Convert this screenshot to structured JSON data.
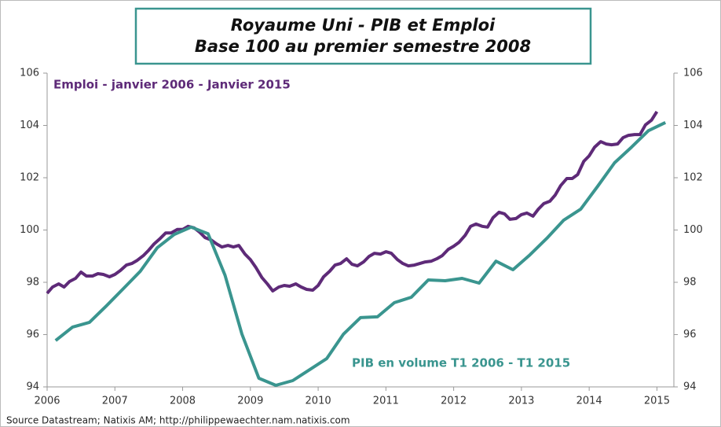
{
  "chart_data": {
    "type": "line",
    "title": "Royaume Uni - PIB et Emploi",
    "subtitle": "Base 100 au premier semestre 2008",
    "source": "Source Datastream; Natixis AM; http://philippewaechter.nam.natixis.com",
    "xlim": [
      2006,
      2015.25
    ],
    "xticks": [
      2006,
      2007,
      2008,
      2009,
      2010,
      2011,
      2012,
      2013,
      2014,
      2015
    ],
    "ylim": [
      94,
      106
    ],
    "yticks": [
      94,
      96,
      98,
      100,
      102,
      104,
      106
    ],
    "y2lim": [
      94,
      106
    ],
    "y2ticks": [
      94,
      96,
      98,
      100,
      102,
      104,
      106
    ],
    "grid": false,
    "series": [
      {
        "name": "Emploi - janvier 2006 - Janvier 2015",
        "color": "#5e2a78",
        "x": [
          2006.0,
          2006.08,
          2006.17,
          2006.25,
          2006.33,
          2006.42,
          2006.5,
          2006.58,
          2006.67,
          2006.75,
          2006.83,
          2006.92,
          2007.0,
          2007.08,
          2007.17,
          2007.25,
          2007.33,
          2007.42,
          2007.5,
          2007.58,
          2007.67,
          2007.75,
          2007.83,
          2007.92,
          2008.0,
          2008.08,
          2008.17,
          2008.25,
          2008.33,
          2008.42,
          2008.5,
          2008.58,
          2008.67,
          2008.75,
          2008.83,
          2008.92,
          2009.0,
          2009.08,
          2009.17,
          2009.25,
          2009.33,
          2009.42,
          2009.5,
          2009.58,
          2009.67,
          2009.75,
          2009.83,
          2009.92,
          2010.0,
          2010.08,
          2010.17,
          2010.25,
          2010.33,
          2010.42,
          2010.5,
          2010.58,
          2010.67,
          2010.75,
          2010.83,
          2010.92,
          2011.0,
          2011.08,
          2011.17,
          2011.25,
          2011.33,
          2011.42,
          2011.5,
          2011.58,
          2011.67,
          2011.75,
          2011.83,
          2011.92,
          2012.0,
          2012.08,
          2012.17,
          2012.25,
          2012.33,
          2012.42,
          2012.5,
          2012.58,
          2012.67,
          2012.75,
          2012.83,
          2012.92,
          2013.0,
          2013.08,
          2013.17,
          2013.25,
          2013.33,
          2013.42,
          2013.5,
          2013.58,
          2013.67,
          2013.75,
          2013.83,
          2013.92,
          2014.0,
          2014.08,
          2014.17,
          2014.25,
          2014.33,
          2014.42,
          2014.5,
          2014.58,
          2014.67,
          2014.75,
          2014.83,
          2014.92,
          2015.0
        ],
        "values": [
          97.58,
          97.82,
          97.94,
          97.82,
          98.03,
          98.15,
          98.39,
          98.24,
          98.24,
          98.33,
          98.3,
          98.21,
          98.3,
          98.45,
          98.66,
          98.72,
          98.84,
          99.02,
          99.23,
          99.47,
          99.68,
          99.89,
          99.89,
          100.02,
          100.02,
          100.14,
          100.08,
          99.92,
          99.71,
          99.62,
          99.47,
          99.35,
          99.41,
          99.35,
          99.41,
          99.08,
          98.87,
          98.57,
          98.18,
          97.94,
          97.67,
          97.82,
          97.88,
          97.85,
          97.94,
          97.82,
          97.73,
          97.7,
          97.88,
          98.21,
          98.42,
          98.66,
          98.72,
          98.9,
          98.69,
          98.63,
          98.78,
          98.99,
          99.11,
          99.08,
          99.17,
          99.11,
          98.87,
          98.72,
          98.63,
          98.66,
          98.72,
          98.78,
          98.81,
          98.9,
          99.02,
          99.26,
          99.38,
          99.53,
          99.8,
          100.14,
          100.23,
          100.14,
          100.11,
          100.47,
          100.68,
          100.62,
          100.41,
          100.44,
          100.59,
          100.65,
          100.53,
          100.8,
          101.01,
          101.1,
          101.34,
          101.7,
          101.97,
          101.97,
          102.12,
          102.63,
          102.84,
          103.17,
          103.38,
          103.29,
          103.26,
          103.29,
          103.53,
          103.62,
          103.65,
          103.65,
          104.02,
          104.2,
          104.53
        ]
      },
      {
        "name": "PIB en volume T1 2006 - T1 2015",
        "color": "#3a958f",
        "x": [
          2006.125,
          2006.375,
          2006.625,
          2006.875,
          2007.125,
          2007.375,
          2007.625,
          2007.875,
          2008.125,
          2008.375,
          2008.625,
          2008.875,
          2009.125,
          2009.375,
          2009.625,
          2009.875,
          2010.125,
          2010.375,
          2010.625,
          2010.875,
          2011.125,
          2011.375,
          2011.625,
          2011.875,
          2012.125,
          2012.375,
          2012.625,
          2012.875,
          2013.125,
          2013.375,
          2013.625,
          2013.875,
          2014.125,
          2014.375,
          2014.625,
          2014.875,
          2015.125
        ],
        "values": [
          95.77,
          96.29,
          96.47,
          97.1,
          97.76,
          98.42,
          99.32,
          99.83,
          100.11,
          99.86,
          98.27,
          96.02,
          94.33,
          94.06,
          94.24,
          94.66,
          95.08,
          96.02,
          96.65,
          96.68,
          97.22,
          97.43,
          98.09,
          98.06,
          98.15,
          97.97,
          98.81,
          98.48,
          99.05,
          99.68,
          100.38,
          100.8,
          101.67,
          102.57,
          103.17,
          103.8,
          104.11
        ]
      }
    ]
  }
}
